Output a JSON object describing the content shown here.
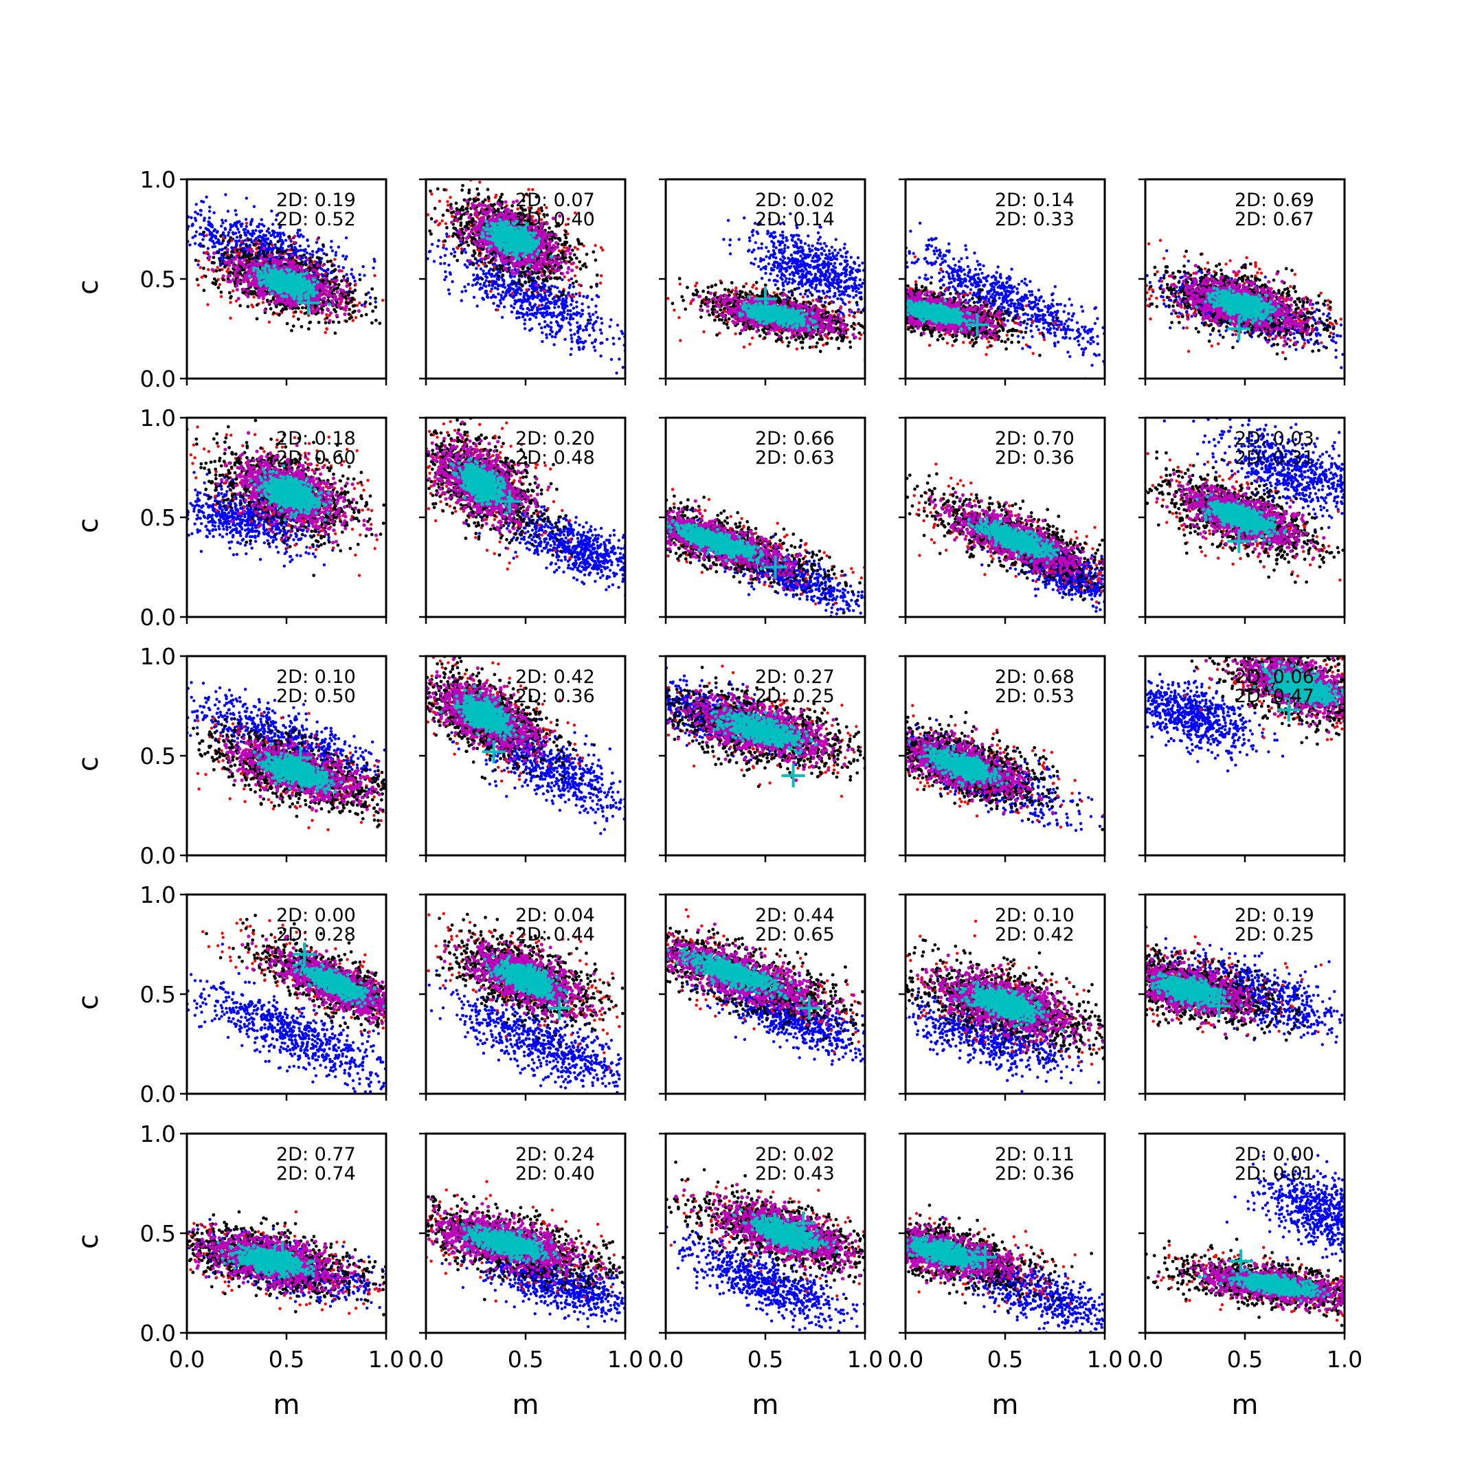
{
  "chart_data": {
    "type": "scatter",
    "layout": {
      "rows": 5,
      "cols": 5
    },
    "title": "",
    "xlabel": "m",
    "ylabel": "c",
    "xlim": [
      0.0,
      1.0
    ],
    "ylim": [
      0.0,
      1.0
    ],
    "x_ticks": [
      "0.0",
      "0.5",
      "1.0"
    ],
    "y_ticks": [
      "0.0",
      "0.5",
      "1.0"
    ],
    "annotation_prefix": "2D: ",
    "colors": {
      "prior": "#0000ff",
      "outer": "#ff0000",
      "mid": "#000000",
      "inner": "#bf00bf",
      "core": "#00bfbf",
      "truth": "#00bfbf"
    },
    "panels": [
      {
        "annot": [
          "0.19",
          "0.52"
        ],
        "post": [
          0.5,
          0.48,
          0.17,
          0.07,
          -18
        ],
        "prior": [
          0.4,
          0.65,
          0.26,
          0.07,
          -18
        ],
        "truth": [
          0.61,
          0.38
        ]
      },
      {
        "annot": [
          "0.07",
          "0.40"
        ],
        "post": [
          0.43,
          0.7,
          0.16,
          0.08,
          -24
        ],
        "prior": [
          0.53,
          0.42,
          0.24,
          0.07,
          -28
        ],
        "truth": [
          0.5,
          0.73
        ]
      },
      {
        "annot": [
          "0.02",
          "0.14"
        ],
        "post": [
          0.55,
          0.32,
          0.19,
          0.05,
          -10
        ],
        "prior": [
          0.75,
          0.55,
          0.18,
          0.07,
          -22
        ],
        "truth": [
          0.5,
          0.4
        ]
      },
      {
        "annot": [
          "0.14",
          "0.33"
        ],
        "post": [
          0.15,
          0.33,
          0.18,
          0.05,
          -12
        ],
        "prior": [
          0.5,
          0.4,
          0.3,
          0.06,
          -25
        ],
        "truth": [
          0.36,
          0.27
        ]
      },
      {
        "annot": [
          "0.69",
          "0.67"
        ],
        "post": [
          0.48,
          0.37,
          0.19,
          0.07,
          -14
        ],
        "prior": [
          0.5,
          0.34,
          0.24,
          0.06,
          -16
        ],
        "truth": [
          0.47,
          0.25
        ]
      },
      {
        "annot": [
          "0.18",
          "0.60"
        ],
        "post": [
          0.52,
          0.62,
          0.18,
          0.09,
          -22
        ],
        "prior": [
          0.3,
          0.5,
          0.18,
          0.07,
          -14
        ],
        "truth": [
          0.55,
          0.64
        ]
      },
      {
        "annot": [
          "0.20",
          "0.48"
        ],
        "post": [
          0.28,
          0.67,
          0.16,
          0.09,
          -34
        ],
        "prior": [
          0.75,
          0.35,
          0.18,
          0.06,
          -22
        ],
        "truth": [
          0.42,
          0.58
        ]
      },
      {
        "annot": [
          "0.66",
          "0.63"
        ],
        "post": [
          0.25,
          0.38,
          0.27,
          0.06,
          -18
        ],
        "prior": [
          0.6,
          0.22,
          0.24,
          0.05,
          -22
        ],
        "truth": [
          0.55,
          0.25
        ]
      },
      {
        "annot": [
          "0.70",
          "0.36"
        ],
        "post": [
          0.55,
          0.39,
          0.23,
          0.06,
          -22
        ],
        "prior": [
          0.8,
          0.22,
          0.16,
          0.05,
          -22
        ],
        "truth": [
          0.58,
          0.37
        ]
      },
      {
        "annot": [
          "0.03",
          "0.31"
        ],
        "post": [
          0.48,
          0.5,
          0.2,
          0.07,
          -20
        ],
        "prior": [
          0.75,
          0.73,
          0.2,
          0.08,
          -22
        ],
        "truth": [
          0.47,
          0.38
        ]
      },
      {
        "annot": [
          "0.10",
          "0.50"
        ],
        "post": [
          0.55,
          0.42,
          0.22,
          0.07,
          -18
        ],
        "prior": [
          0.5,
          0.58,
          0.26,
          0.07,
          -20
        ],
        "truth": [
          0.57,
          0.49
        ]
      },
      {
        "annot": [
          "0.42",
          "0.36"
        ],
        "post": [
          0.3,
          0.7,
          0.17,
          0.08,
          -28
        ],
        "prior": [
          0.6,
          0.45,
          0.22,
          0.07,
          -28
        ],
        "truth": [
          0.34,
          0.52
        ]
      },
      {
        "annot": [
          "0.27",
          "0.25"
        ],
        "post": [
          0.48,
          0.63,
          0.24,
          0.08,
          -15
        ],
        "prior": [
          0.25,
          0.7,
          0.18,
          0.06,
          -18
        ],
        "truth": [
          0.64,
          0.4
        ]
      },
      {
        "annot": [
          "0.68",
          "0.53"
        ],
        "post": [
          0.28,
          0.45,
          0.21,
          0.07,
          -18
        ],
        "prior": [
          0.38,
          0.4,
          0.23,
          0.06,
          -22
        ],
        "truth": [
          0.3,
          0.43
        ]
      },
      {
        "annot": [
          "0.06",
          "0.47"
        ],
        "post": [
          0.78,
          0.85,
          0.2,
          0.08,
          -20
        ],
        "prior": [
          0.22,
          0.7,
          0.16,
          0.07,
          -20
        ],
        "truth": [
          0.72,
          0.73
        ]
      },
      {
        "annot": [
          "0.00",
          "0.28"
        ],
        "post": [
          0.75,
          0.55,
          0.21,
          0.06,
          -24
        ],
        "prior": [
          0.52,
          0.3,
          0.28,
          0.07,
          -24
        ],
        "truth": [
          0.59,
          0.7
        ]
      },
      {
        "annot": [
          "0.04",
          "0.44"
        ],
        "post": [
          0.5,
          0.58,
          0.19,
          0.08,
          -22
        ],
        "prior": [
          0.6,
          0.25,
          0.24,
          0.07,
          -24
        ],
        "truth": [
          0.67,
          0.43
        ]
      },
      {
        "annot": [
          "0.44",
          "0.65"
        ],
        "post": [
          0.35,
          0.6,
          0.3,
          0.07,
          -18
        ],
        "prior": [
          0.6,
          0.4,
          0.2,
          0.06,
          -22
        ],
        "truth": [
          0.72,
          0.43
        ]
      },
      {
        "annot": [
          "0.10",
          "0.42"
        ],
        "post": [
          0.5,
          0.45,
          0.23,
          0.08,
          -16
        ],
        "prior": [
          0.42,
          0.3,
          0.22,
          0.07,
          -20
        ],
        "truth": [
          0.55,
          0.43
        ]
      },
      {
        "annot": [
          "0.19",
          "0.25"
        ],
        "post": [
          0.22,
          0.52,
          0.2,
          0.07,
          -14
        ],
        "prior": [
          0.55,
          0.5,
          0.26,
          0.07,
          -18
        ],
        "truth": [
          0.37,
          0.44
        ]
      },
      {
        "annot": [
          "0.77",
          "0.74"
        ],
        "post": [
          0.42,
          0.36,
          0.23,
          0.07,
          -12
        ],
        "prior": [
          0.5,
          0.33,
          0.22,
          0.06,
          -14
        ],
        "truth": [
          0.48,
          0.4
        ]
      },
      {
        "annot": [
          "0.24",
          "0.40"
        ],
        "post": [
          0.4,
          0.45,
          0.25,
          0.07,
          -14
        ],
        "prior": [
          0.65,
          0.25,
          0.2,
          0.06,
          -18
        ],
        "truth": [
          0.44,
          0.45
        ]
      },
      {
        "annot": [
          "0.02",
          "0.43"
        ],
        "post": [
          0.6,
          0.5,
          0.23,
          0.07,
          -18
        ],
        "prior": [
          0.5,
          0.25,
          0.23,
          0.06,
          -24
        ],
        "truth": [
          0.69,
          0.55
        ]
      },
      {
        "annot": [
          "0.11",
          "0.36"
        ],
        "post": [
          0.2,
          0.4,
          0.22,
          0.06,
          -14
        ],
        "prior": [
          0.65,
          0.2,
          0.27,
          0.06,
          -22
        ],
        "truth": [
          0.4,
          0.38
        ]
      },
      {
        "annot": [
          "0.00",
          "0.01"
        ],
        "post": [
          0.65,
          0.24,
          0.25,
          0.05,
          -8
        ],
        "prior": [
          0.9,
          0.6,
          0.16,
          0.08,
          -26
        ],
        "truth": [
          0.48,
          0.36
        ]
      }
    ]
  }
}
